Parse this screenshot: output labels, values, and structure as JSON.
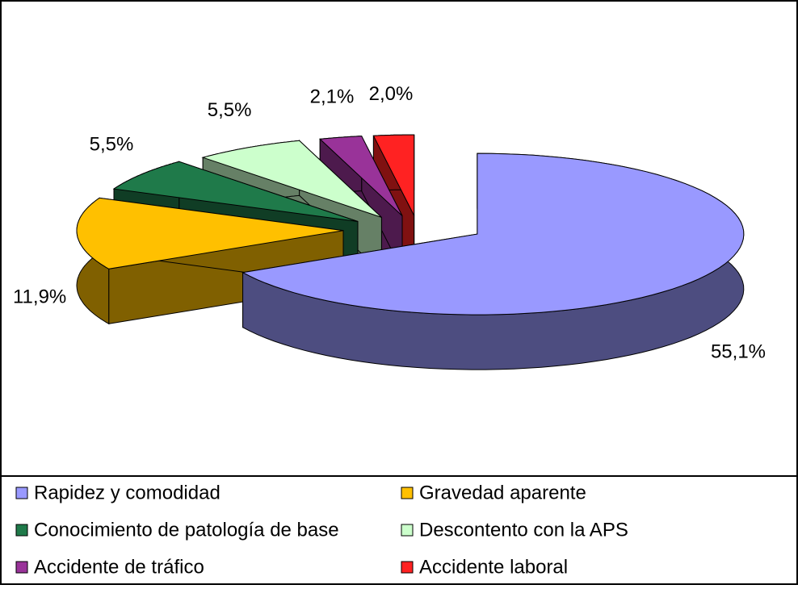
{
  "chart_data": {
    "type": "pie",
    "three_d": true,
    "exploded": true,
    "categories": [
      "Rapidez y comodidad",
      "Gravedad aparente",
      "Conocimiento de patología de base",
      "Descontento con la APS",
      "Accidente de tráfico",
      "Accidente  laboral"
    ],
    "values": [
      55.1,
      11.9,
      5.5,
      5.5,
      2.1,
      2.0
    ],
    "value_labels": [
      "55,1%",
      "11,9%",
      "5,5%",
      "5,5%",
      "2,1%",
      "2,0%"
    ],
    "colors": [
      "#9999ff",
      "#ffc000",
      "#1f7a4a",
      "#ccffcc",
      "#993399",
      "#ff2222"
    ],
    "legend": "bottom"
  }
}
